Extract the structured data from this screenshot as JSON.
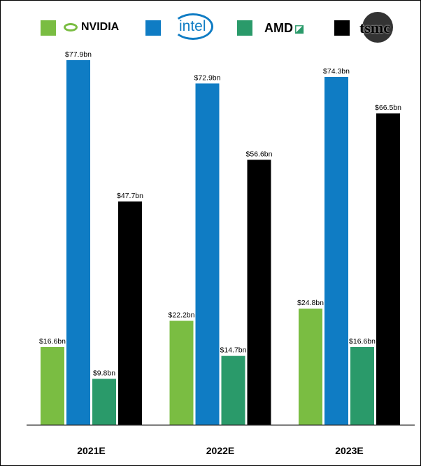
{
  "chart_data": {
    "type": "bar",
    "categories": [
      "2021E",
      "2022E",
      "2023E"
    ],
    "series": [
      {
        "name": "NVIDIA",
        "color": "#7ABD42",
        "values": [
          16.6,
          22.2,
          24.8
        ],
        "labels": [
          "$16.6bn",
          "$22.2bn",
          "$24.8bn"
        ]
      },
      {
        "name": "intel",
        "color": "#0F7CC4",
        "values": [
          77.9,
          72.9,
          74.3
        ],
        "labels": [
          "$77.9bn",
          "$72.9bn",
          "$74.3bn"
        ]
      },
      {
        "name": "AMD",
        "color": "#2A9A6A",
        "values": [
          9.8,
          14.7,
          16.6
        ],
        "labels": [
          "$9.8bn",
          "$14.7bn",
          "$16.6bn"
        ]
      },
      {
        "name": "tsmc",
        "color": "#000000",
        "values": [
          47.7,
          56.6,
          66.5
        ],
        "labels": [
          "$47.7bn",
          "$56.6bn",
          "$66.5bn"
        ]
      }
    ],
    "unit": "bn USD",
    "ylim": [
      0,
      87.6
    ],
    "grid": false,
    "legend_position": "top",
    "legend_style": "company logos"
  }
}
